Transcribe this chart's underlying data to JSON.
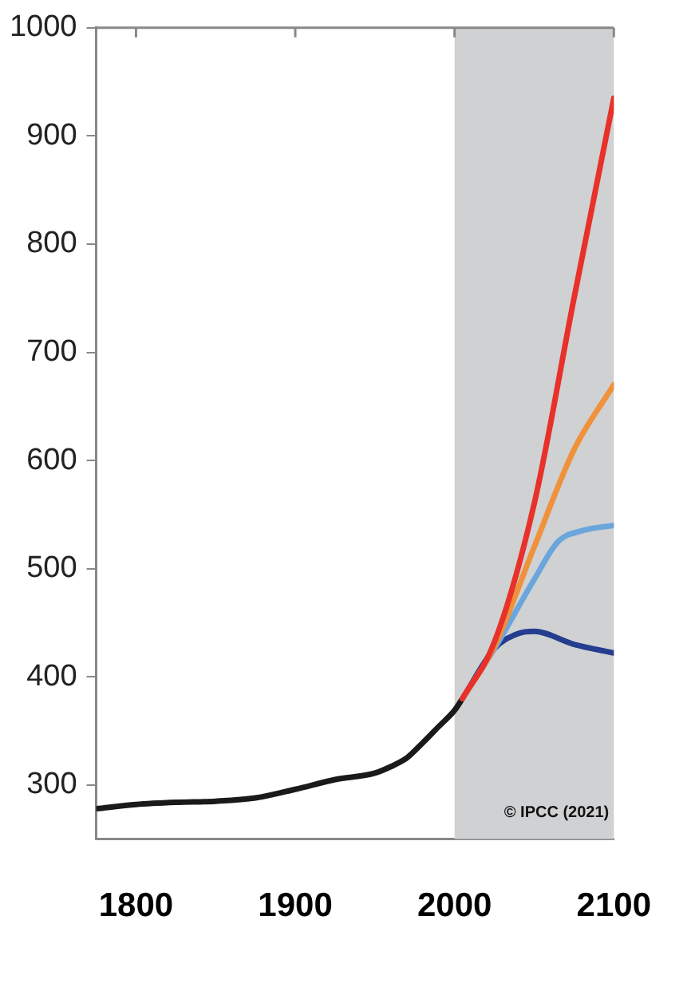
{
  "chart_data": {
    "type": "line",
    "xlim": [
      1775,
      2100
    ],
    "xticks": [
      1800,
      1900,
      2000,
      2100
    ],
    "ylim": [
      250,
      1000
    ],
    "yticks": [
      300,
      400,
      500,
      600,
      700,
      800,
      900,
      1000
    ],
    "grid": false,
    "legend": false,
    "marker": "none",
    "line_style": "solid",
    "bands": [
      {
        "axis": "x",
        "from": 2000,
        "to": 2100,
        "color": "#d0d1d3"
      }
    ],
    "annotations": [
      "© IPCC (2021)"
    ],
    "series": [
      {
        "color": "#e8312a",
        "x": [
          2005,
          2025,
          2050,
          2075,
          2100
        ],
        "values": [
          380,
          432,
          560,
          750,
          935
        ]
      },
      {
        "color": "#f0913b",
        "x": [
          2005,
          2025,
          2050,
          2075,
          2100
        ],
        "values": [
          380,
          428,
          520,
          610,
          670
        ]
      },
      {
        "color": "#6aa6dc",
        "x": [
          2005,
          2025,
          2050,
          2065,
          2080,
          2100
        ],
        "values": [
          380,
          426,
          490,
          525,
          535,
          540
        ]
      },
      {
        "color": "#253d8f",
        "x": [
          2005,
          2025,
          2040,
          2050,
          2075,
          2100
        ],
        "values": [
          380,
          426,
          440,
          442,
          430,
          422
        ]
      },
      {
        "color": "#1a1a1a",
        "x": [
          1775,
          1800,
          1825,
          1850,
          1875,
          1900,
          1925,
          1950,
          1960,
          1970,
          1980,
          1990,
          2000,
          2005
        ],
        "values": [
          278,
          282,
          284,
          285,
          288,
          296,
          305,
          311,
          317,
          325,
          339,
          354,
          369,
          380
        ]
      }
    ]
  }
}
